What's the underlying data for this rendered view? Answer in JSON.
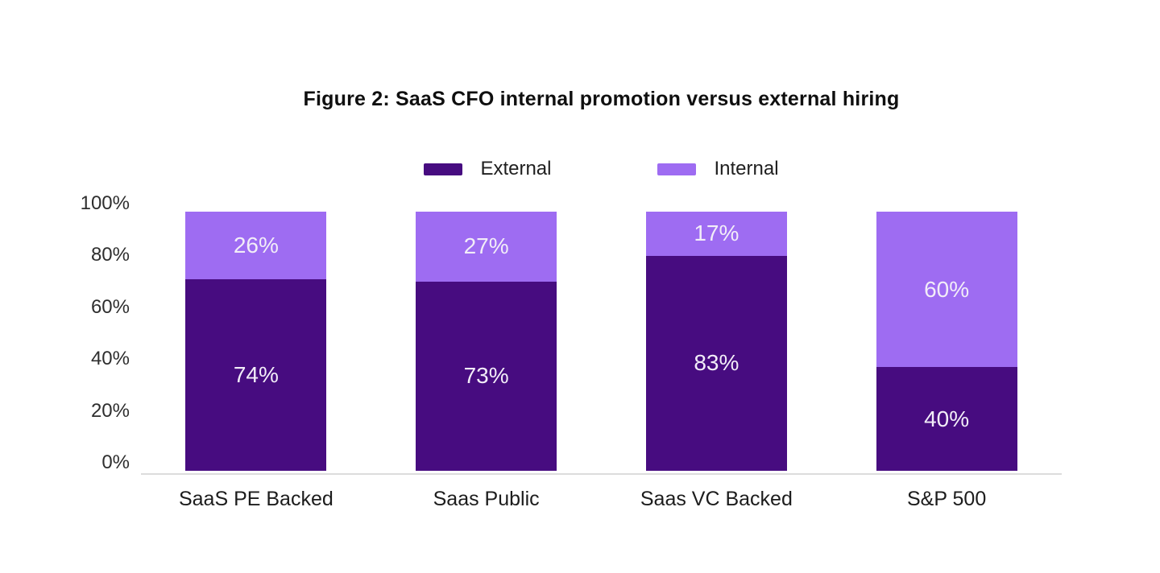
{
  "chart_data": {
    "type": "bar",
    "stacked": true,
    "title": "Figure 2: SaaS CFO internal promotion versus external hiring",
    "categories": [
      "SaaS PE Backed",
      "Saas Public",
      "Saas VC Backed",
      "S&P 500"
    ],
    "series": [
      {
        "name": "External",
        "color": "#470c80",
        "values": [
          74,
          73,
          83,
          40
        ]
      },
      {
        "name": "Internal",
        "color": "#9e6cf2",
        "values": [
          26,
          27,
          17,
          60
        ]
      }
    ],
    "value_label_suffix": "%",
    "value_label_color": "#f2edf8",
    "ylim": [
      0,
      100
    ],
    "yticks": [
      100,
      80,
      60,
      40,
      20,
      0
    ],
    "ytick_suffix": "%",
    "grid": false,
    "legend_position": "top",
    "axis_line_color": "#dcdcdc",
    "xlabel": "",
    "ylabel": ""
  }
}
